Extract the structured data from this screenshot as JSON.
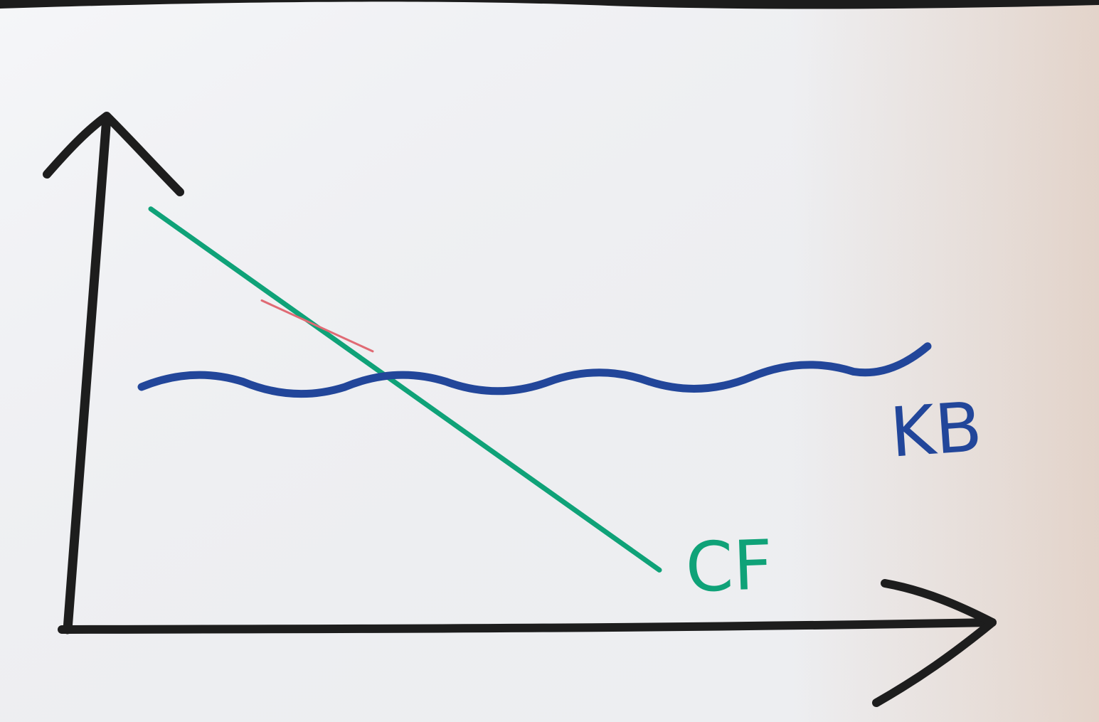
{
  "photo": {
    "colors": {
      "paper_light": "#f4f5f8",
      "paper_warm": "#e9d9cf",
      "background": "#1c1c1c",
      "ink_black": "#1d1d1d",
      "ink_blue": "#22469a",
      "ink_green": "#0fa278",
      "ink_red": "#e06a74"
    }
  },
  "chart_data": {
    "type": "line",
    "title": "",
    "xlabel": "",
    "ylabel": "",
    "grid": false,
    "xlim": [
      0,
      10
    ],
    "ylim": [
      0,
      10
    ],
    "axes": {
      "x_arrow": true,
      "y_arrow": true,
      "ticks": false
    },
    "series": [
      {
        "name": "CF",
        "style": "straight-line",
        "color": "#0fa278",
        "points": [
          {
            "x": 0.9,
            "y": 8.2
          },
          {
            "x": 6.4,
            "y": 1.1
          }
        ]
      },
      {
        "name": "KB",
        "style": "wavy-line",
        "color": "#22469a",
        "points": [
          {
            "x": 0.8,
            "y": 4.7
          },
          {
            "x": 1.9,
            "y": 4.8
          },
          {
            "x": 3.0,
            "y": 4.7
          },
          {
            "x": 4.1,
            "y": 4.8
          },
          {
            "x": 5.2,
            "y": 4.8
          },
          {
            "x": 6.3,
            "y": 4.8
          },
          {
            "x": 7.4,
            "y": 4.9
          },
          {
            "x": 8.5,
            "y": 5.0
          },
          {
            "x": 9.3,
            "y": 5.5
          }
        ]
      }
    ],
    "annotations": [
      {
        "type": "stray-red-mark",
        "color": "#e06a74",
        "from": {
          "x": 2.1,
          "y": 6.4
        },
        "to": {
          "x": 3.3,
          "y": 5.4
        }
      }
    ]
  }
}
